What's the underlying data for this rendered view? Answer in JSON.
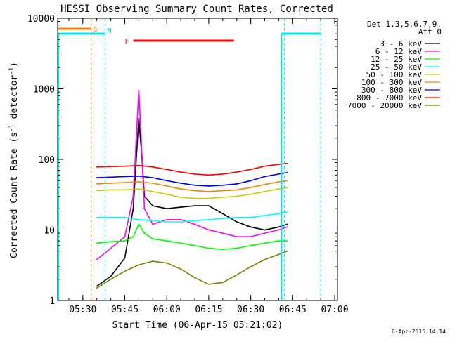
{
  "chart_data": {
    "type": "line",
    "title": "HESSI Observing Summary Count Rates, Corrected",
    "xlabel": "Start Time (06-Apr-15 05:21:02)",
    "ylabel": "Corrected Count Rate (s-1 detector-1)",
    "yscale": "log",
    "ylim": [
      1,
      10000
    ],
    "xlim_minutes_of_day": [
      321.0,
      421.0
    ],
    "x_ticks": [
      "05:30",
      "05:45",
      "06:00",
      "06:15",
      "06:30",
      "06:45",
      "07:00"
    ],
    "y_ticks": [
      "1",
      "10",
      "100",
      "1000",
      "10000"
    ],
    "legend_header": [
      "Det 1,3,5,6,7,9,",
      "Att 0"
    ],
    "legend_position": "right",
    "timestamp": "6-Apr-2015 14:14",
    "flags": [
      {
        "label": "S",
        "color": "#ff7f00",
        "start": "05:21",
        "end": "05:33"
      },
      {
        "label": "N",
        "color": "#00e5ee",
        "start": "05:21",
        "end": "05:38"
      },
      {
        "label": "F",
        "color": "#ff0000",
        "start": "05:48",
        "end": "06:24"
      }
    ],
    "series": [
      {
        "name": "3 - 6 keV",
        "color": "#000000",
        "x": [
          "05:35",
          "05:40",
          "05:45",
          "05:48",
          "05:50",
          "05:51",
          "05:52",
          "05:55",
          "06:00",
          "06:05",
          "06:10",
          "06:15",
          "06:20",
          "06:25",
          "06:30",
          "06:35",
          "06:40",
          "06:43"
        ],
        "y": [
          1.6,
          2.2,
          4,
          20,
          380,
          120,
          30,
          22,
          20,
          21,
          22,
          22,
          17,
          13,
          11,
          10,
          11,
          12
        ]
      },
      {
        "name": "6 - 12 keV",
        "color": "#ff00ff",
        "x": [
          "05:35",
          "05:40",
          "05:45",
          "05:48",
          "05:50",
          "05:51",
          "05:52",
          "05:55",
          "06:00",
          "06:05",
          "06:10",
          "06:15",
          "06:20",
          "06:25",
          "06:30",
          "06:35",
          "06:40",
          "06:43"
        ],
        "y": [
          3.8,
          5.5,
          8,
          30,
          950,
          150,
          20,
          12,
          14,
          14,
          12,
          10,
          9,
          8,
          8,
          9,
          10,
          11
        ]
      },
      {
        "name": "12 - 25 keV",
        "color": "#00ff00",
        "x": [
          "05:35",
          "05:40",
          "05:45",
          "05:48",
          "05:50",
          "05:52",
          "05:55",
          "06:00",
          "06:05",
          "06:10",
          "06:15",
          "06:20",
          "06:25",
          "06:30",
          "06:35",
          "06:40",
          "06:43"
        ],
        "y": [
          6.5,
          6.8,
          7,
          8,
          12,
          9,
          7.5,
          7,
          6.5,
          6,
          5.5,
          5.3,
          5.5,
          6,
          6.5,
          7,
          7
        ]
      },
      {
        "name": "25 - 50 keV",
        "color": "#00ffff",
        "x": [
          "05:35",
          "05:40",
          "05:45",
          "05:50",
          "05:55",
          "06:00",
          "06:05",
          "06:10",
          "06:15",
          "06:20",
          "06:25",
          "06:30",
          "06:35",
          "06:40",
          "06:43"
        ],
        "y": [
          15,
          15,
          15,
          14,
          13.5,
          13,
          13,
          13.5,
          14,
          14.5,
          15,
          15,
          16,
          17,
          18
        ]
      },
      {
        "name": "50 - 100 keV",
        "color": "#cccc00",
        "x": [
          "05:35",
          "05:40",
          "05:45",
          "05:50",
          "05:55",
          "06:00",
          "06:05",
          "06:10",
          "06:15",
          "06:20",
          "06:25",
          "06:30",
          "06:35",
          "06:40",
          "06:43"
        ],
        "y": [
          36,
          37,
          37,
          38,
          35,
          32,
          29,
          28,
          28,
          29,
          30,
          32,
          35,
          38,
          40
        ]
      },
      {
        "name": "100 - 300 keV",
        "color": "#ff7f00",
        "x": [
          "05:35",
          "05:40",
          "05:45",
          "05:50",
          "05:55",
          "06:00",
          "06:05",
          "06:10",
          "06:15",
          "06:20",
          "06:25",
          "06:30",
          "06:35",
          "06:40",
          "06:43"
        ],
        "y": [
          45,
          46,
          47,
          48,
          46,
          42,
          38,
          36,
          35,
          36,
          37,
          40,
          44,
          48,
          50
        ]
      },
      {
        "name": "300 - 800 keV",
        "color": "#0000ff",
        "x": [
          "05:35",
          "05:40",
          "05:45",
          "05:50",
          "05:55",
          "06:00",
          "06:05",
          "06:10",
          "06:15",
          "06:20",
          "06:25",
          "06:30",
          "06:35",
          "06:40",
          "06:43"
        ],
        "y": [
          55,
          56,
          57,
          58,
          55,
          50,
          46,
          43,
          42,
          43,
          45,
          50,
          57,
          62,
          65
        ]
      },
      {
        "name": "800 - 7000 keV",
        "color": "#ff0000",
        "x": [
          "05:35",
          "05:40",
          "05:45",
          "05:50",
          "05:55",
          "06:00",
          "06:05",
          "06:10",
          "06:15",
          "06:20",
          "06:25",
          "06:30",
          "06:35",
          "06:40",
          "06:43"
        ],
        "y": [
          78,
          79,
          80,
          82,
          78,
          72,
          66,
          62,
          60,
          62,
          66,
          72,
          80,
          85,
          88
        ]
      },
      {
        "name": "7000 - 20000 keV",
        "color": "#808000",
        "x": [
          "05:35",
          "05:40",
          "05:45",
          "05:50",
          "05:55",
          "06:00",
          "06:05",
          "06:10",
          "06:15",
          "06:20",
          "06:25",
          "06:30",
          "06:35",
          "06:40",
          "06:43"
        ],
        "y": [
          1.5,
          2.0,
          2.6,
          3.2,
          3.6,
          3.4,
          2.8,
          2.1,
          1.7,
          1.8,
          2.3,
          3.0,
          3.8,
          4.5,
          5.0
        ]
      }
    ],
    "grid": false
  }
}
